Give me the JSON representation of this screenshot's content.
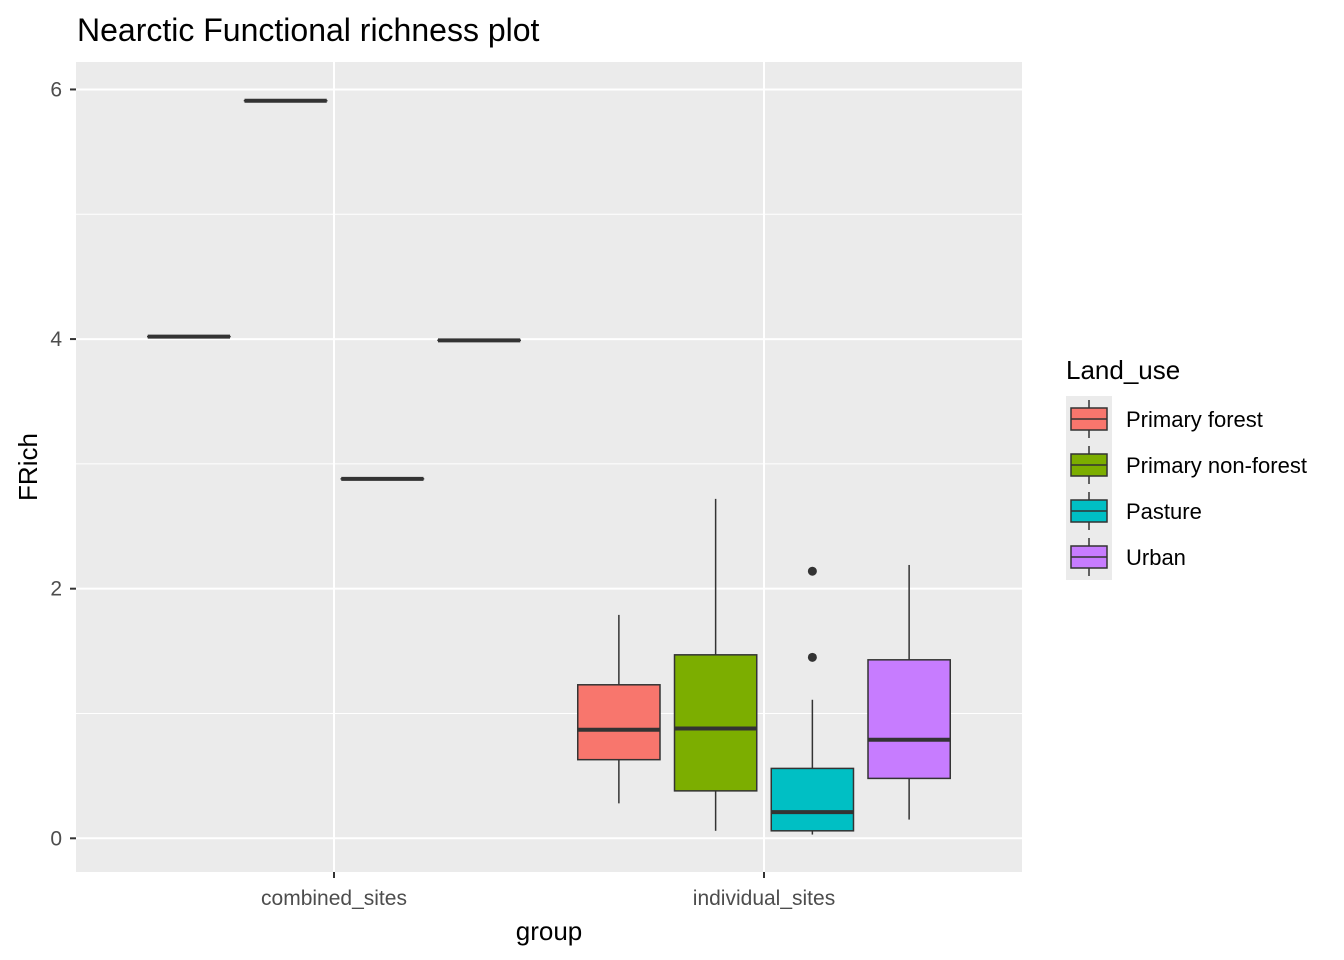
{
  "chart_data": {
    "type": "boxplot",
    "title": "Nearctic Functional richness plot",
    "xlabel": "group",
    "ylabel": "FRich",
    "categories": [
      "combined_sites",
      "individual_sites"
    ],
    "ylim": [
      -0.27,
      6.22
    ],
    "yticks": [
      0,
      2,
      4,
      6
    ],
    "grid": true,
    "legend": {
      "title": "Land_use",
      "position": "right"
    },
    "series": [
      {
        "name": "Primary forest",
        "color": "#F8766D",
        "boxes": [
          {
            "category": "combined_sites",
            "min": 4.02,
            "q1": 4.02,
            "median": 4.02,
            "q3": 4.02,
            "max": 4.02,
            "outliers": []
          },
          {
            "category": "individual_sites",
            "min": 0.28,
            "q1": 0.63,
            "median": 0.87,
            "q3": 1.23,
            "max": 1.79,
            "outliers": []
          }
        ]
      },
      {
        "name": "Primary non-forest",
        "color": "#7CAE00",
        "boxes": [
          {
            "category": "combined_sites",
            "min": 5.91,
            "q1": 5.91,
            "median": 5.91,
            "q3": 5.91,
            "max": 5.91,
            "outliers": []
          },
          {
            "category": "individual_sites",
            "min": 0.06,
            "q1": 0.38,
            "median": 0.88,
            "q3": 1.47,
            "max": 2.72,
            "outliers": []
          }
        ]
      },
      {
        "name": "Pasture",
        "color": "#00BFC4",
        "boxes": [
          {
            "category": "combined_sites",
            "min": 2.88,
            "q1": 2.88,
            "median": 2.88,
            "q3": 2.88,
            "max": 2.88,
            "outliers": []
          },
          {
            "category": "individual_sites",
            "min": 0.03,
            "q1": 0.06,
            "median": 0.21,
            "q3": 0.56,
            "max": 1.11,
            "outliers": [
              1.45,
              2.14
            ]
          }
        ]
      },
      {
        "name": "Urban",
        "color": "#C77CFF",
        "boxes": [
          {
            "category": "combined_sites",
            "min": 3.99,
            "q1": 3.99,
            "median": 3.99,
            "q3": 3.99,
            "max": 3.99,
            "outliers": []
          },
          {
            "category": "individual_sites",
            "min": 0.15,
            "q1": 0.48,
            "median": 0.79,
            "q3": 1.43,
            "max": 2.19,
            "outliers": []
          }
        ]
      }
    ]
  }
}
